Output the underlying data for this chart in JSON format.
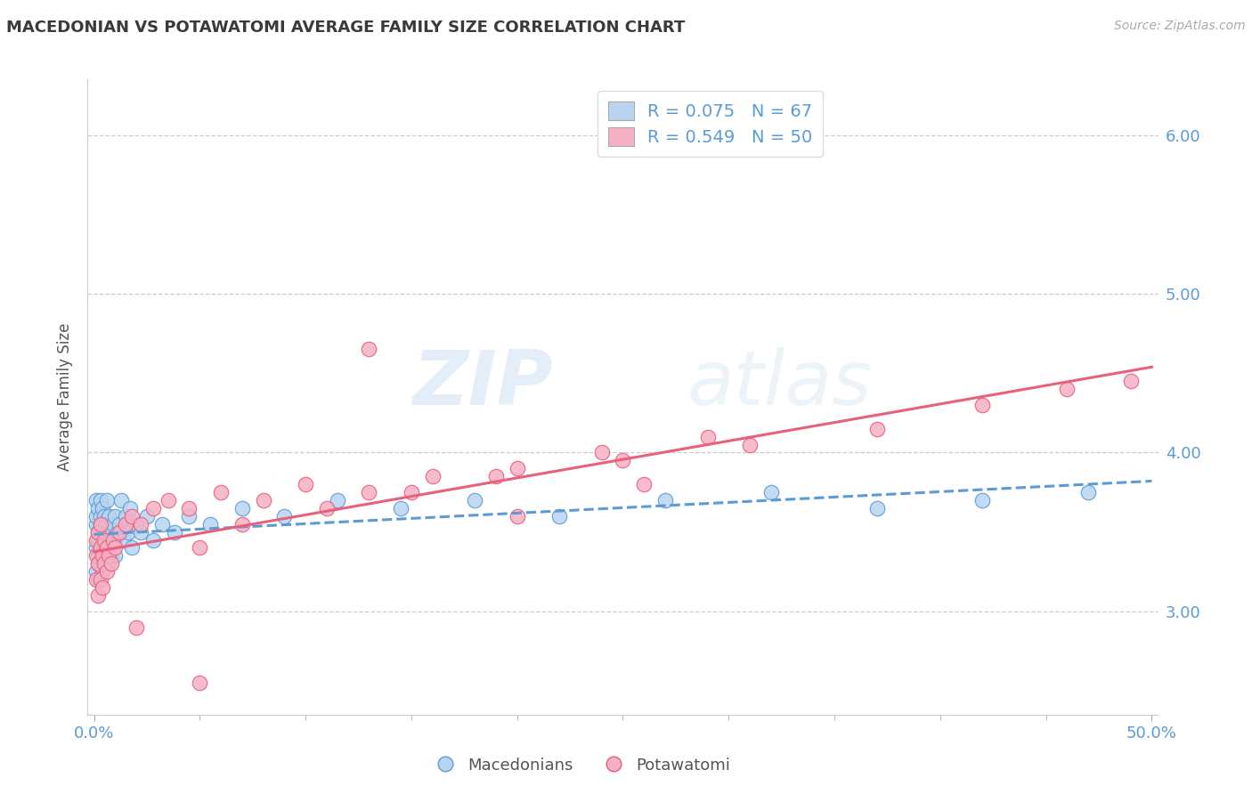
{
  "title": "MACEDONIAN VS POTAWATOMI AVERAGE FAMILY SIZE CORRELATION CHART",
  "source": "Source: ZipAtlas.com",
  "ylabel": "Average Family Size",
  "xlim": [
    -0.003,
    0.503
  ],
  "ylim": [
    2.35,
    6.35
  ],
  "yticks": [
    3.0,
    4.0,
    5.0,
    6.0
  ],
  "xticks": [
    0.0,
    0.5
  ],
  "xtick_labels": [
    "0.0%",
    "50.0%"
  ],
  "legend_line1": "R = 0.075   N = 67",
  "legend_line2": "R = 0.549   N = 50",
  "macedonian_color": "#b8d4f0",
  "potawatomi_color": "#f5b0c5",
  "trend_macedonian_color": "#5b9bd5",
  "trend_potawatomi_color": "#e8607a",
  "legend_label1": "Macedonians",
  "legend_label2": "Potawatomi",
  "background_color": "#ffffff",
  "grid_color": "#cccccc",
  "title_color": "#3a3a3a",
  "right_axis_color": "#5b9bd5",
  "watermark_zip": "ZIP",
  "watermark_atlas": "atlas",
  "mac_x": [
    0.001,
    0.001,
    0.001,
    0.001,
    0.001,
    0.002,
    0.002,
    0.002,
    0.002,
    0.002,
    0.002,
    0.003,
    0.003,
    0.003,
    0.003,
    0.003,
    0.004,
    0.004,
    0.004,
    0.004,
    0.004,
    0.005,
    0.005,
    0.005,
    0.005,
    0.006,
    0.006,
    0.006,
    0.006,
    0.007,
    0.007,
    0.007,
    0.008,
    0.008,
    0.008,
    0.009,
    0.009,
    0.01,
    0.01,
    0.01,
    0.011,
    0.012,
    0.013,
    0.014,
    0.015,
    0.016,
    0.017,
    0.018,
    0.02,
    0.022,
    0.025,
    0.028,
    0.032,
    0.038,
    0.045,
    0.055,
    0.07,
    0.09,
    0.115,
    0.145,
    0.18,
    0.22,
    0.27,
    0.32,
    0.37,
    0.42,
    0.47
  ],
  "mac_y": [
    3.55,
    3.7,
    3.4,
    3.25,
    3.6,
    3.45,
    3.3,
    3.65,
    3.5,
    3.35,
    3.2,
    3.55,
    3.4,
    3.7,
    3.3,
    3.6,
    3.45,
    3.35,
    3.55,
    3.25,
    3.65,
    3.4,
    3.3,
    3.6,
    3.5,
    3.45,
    3.35,
    3.55,
    3.7,
    3.4,
    3.3,
    3.6,
    3.5,
    3.45,
    3.35,
    3.55,
    3.4,
    3.6,
    3.45,
    3.35,
    3.5,
    3.55,
    3.7,
    3.45,
    3.6,
    3.5,
    3.65,
    3.4,
    3.55,
    3.5,
    3.6,
    3.45,
    3.55,
    3.5,
    3.6,
    3.55,
    3.65,
    3.6,
    3.7,
    3.65,
    3.7,
    3.6,
    3.7,
    3.75,
    3.65,
    3.7,
    3.75
  ],
  "pot_x": [
    0.001,
    0.001,
    0.001,
    0.002,
    0.002,
    0.002,
    0.003,
    0.003,
    0.003,
    0.004,
    0.004,
    0.005,
    0.005,
    0.006,
    0.006,
    0.007,
    0.008,
    0.009,
    0.01,
    0.012,
    0.015,
    0.018,
    0.022,
    0.028,
    0.035,
    0.045,
    0.06,
    0.08,
    0.1,
    0.13,
    0.16,
    0.2,
    0.25,
    0.31,
    0.37,
    0.42,
    0.46,
    0.49,
    0.13,
    0.2,
    0.26,
    0.05,
    0.07,
    0.11,
    0.15,
    0.19,
    0.24,
    0.29,
    0.05,
    0.02
  ],
  "pot_y": [
    3.35,
    3.2,
    3.45,
    3.3,
    3.1,
    3.5,
    3.4,
    3.2,
    3.55,
    3.35,
    3.15,
    3.3,
    3.45,
    3.25,
    3.4,
    3.35,
    3.3,
    3.45,
    3.4,
    3.5,
    3.55,
    3.6,
    3.55,
    3.65,
    3.7,
    3.65,
    3.75,
    3.7,
    3.8,
    3.75,
    3.85,
    3.9,
    3.95,
    4.05,
    4.15,
    4.3,
    4.4,
    4.45,
    4.65,
    3.6,
    3.8,
    3.4,
    3.55,
    3.65,
    3.75,
    3.85,
    4.0,
    4.1,
    2.55,
    2.9
  ]
}
